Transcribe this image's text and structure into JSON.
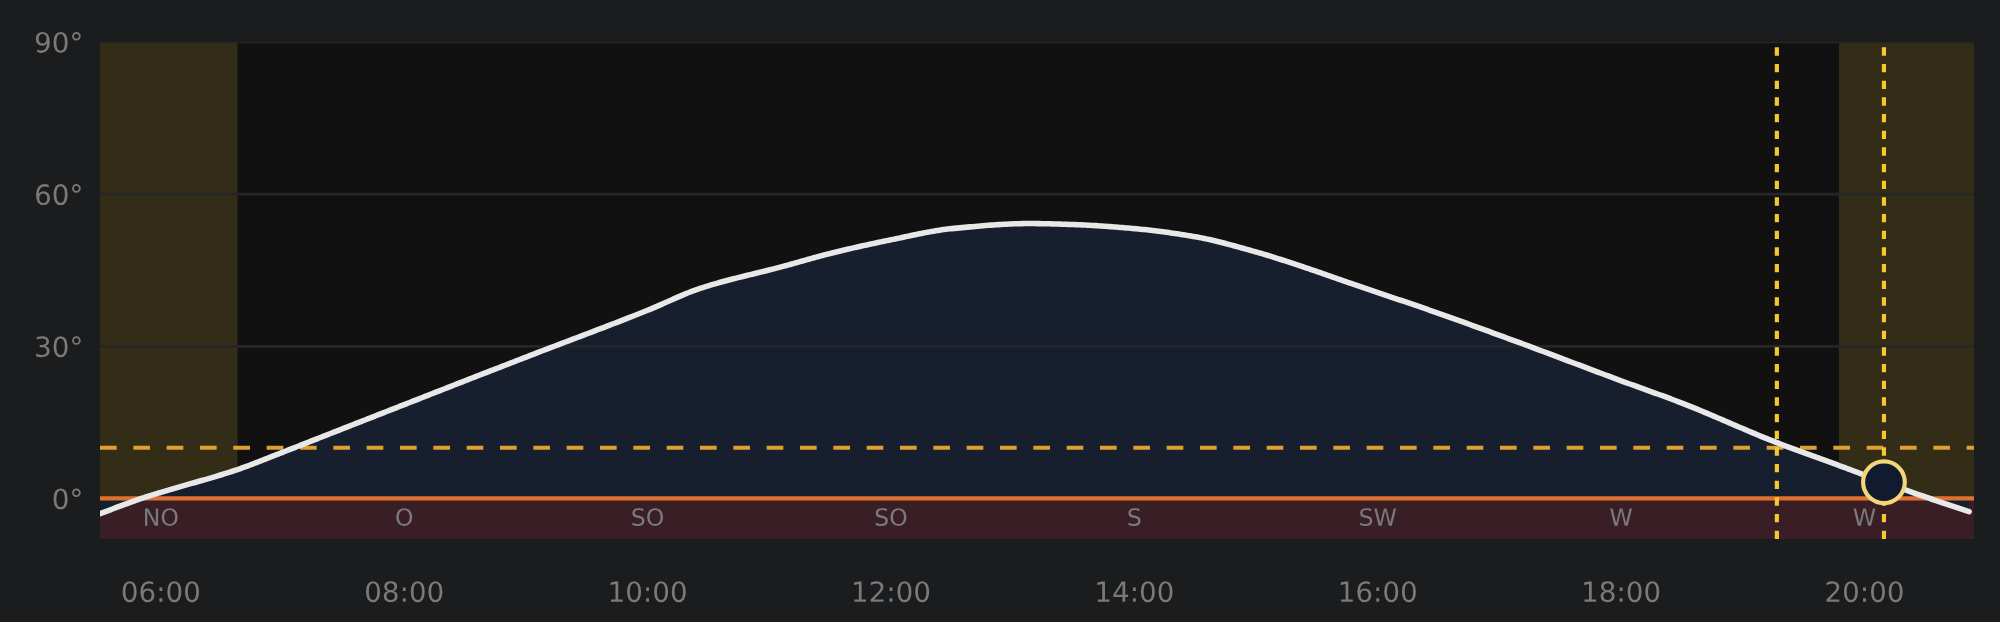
{
  "chart_data": {
    "type": "area",
    "xlim": [
      5.5,
      20.9
    ],
    "ylim": [
      -8,
      90
    ],
    "xticks": [
      {
        "value": 6,
        "label": "06:00"
      },
      {
        "value": 8,
        "label": "08:00"
      },
      {
        "value": 10,
        "label": "10:00"
      },
      {
        "value": 12,
        "label": "12:00"
      },
      {
        "value": 14,
        "label": "14:00"
      },
      {
        "value": 16,
        "label": "16:00"
      },
      {
        "value": 18,
        "label": "18:00"
      },
      {
        "value": 20,
        "label": "20:00"
      }
    ],
    "yticks": [
      {
        "value": 0,
        "label": "0°"
      },
      {
        "value": 30,
        "label": "30°"
      },
      {
        "value": 60,
        "label": "60°"
      },
      {
        "value": 90,
        "label": "90°"
      }
    ],
    "grid": "y",
    "series": [
      {
        "color": "#e8e8e8",
        "x": [
          5.5,
          5.84,
          6.0,
          6.63,
          7.0,
          7.5,
          8.0,
          8.5,
          9.08,
          10.0,
          10.43,
          11.12,
          11.5,
          12.0,
          12.5,
          13.14,
          13.5,
          14.0,
          14.5,
          15.0,
          15.37,
          15.78,
          16.5,
          17.2,
          18.0,
          18.5,
          19.28,
          19.79,
          20.16,
          20.5,
          20.86
        ],
        "values": [
          -3.0,
          0,
          1.2,
          5.7,
          9.1,
          13.8,
          18.5,
          23.2,
          28.6,
          37.1,
          41.4,
          45.8,
          48.3,
          51.0,
          53.2,
          54.2,
          54.0,
          53.2,
          51.6,
          48.6,
          45.8,
          42.4,
          36.5,
          30.4,
          23.2,
          18.8,
          11.0,
          6.5,
          3.2,
          0.3,
          -2.6
        ]
      },
      {
        "type": "scatter",
        "color": "#111a2e",
        "x": [
          20.16
        ],
        "values": [
          3.2
        ]
      }
    ],
    "bands": [
      {
        "axis": "x",
        "from": 5.5,
        "to": 6.63,
        "color": "#332c17"
      },
      {
        "axis": "x",
        "from": 19.79,
        "to": 20.9,
        "color": "#332c17"
      },
      {
        "axis": "y",
        "from": -8,
        "to": 0,
        "color": "#3a1e26"
      }
    ],
    "ref_lines": [
      {
        "axis": "y",
        "value": 0,
        "color": "#e07030",
        "line_style": "solid"
      },
      {
        "axis": "y",
        "value": 10,
        "color": "#e0a030",
        "line_style": "dashed"
      },
      {
        "axis": "x",
        "value": 19.28,
        "color": "#f5c830",
        "line_style": "dotted"
      },
      {
        "axis": "x",
        "value": 20.16,
        "color": "#f5c830",
        "line_style": "dotted"
      }
    ],
    "annotations": [
      "NO",
      "O",
      "SO",
      "SO",
      "S",
      "SW",
      "W",
      "W"
    ]
  }
}
